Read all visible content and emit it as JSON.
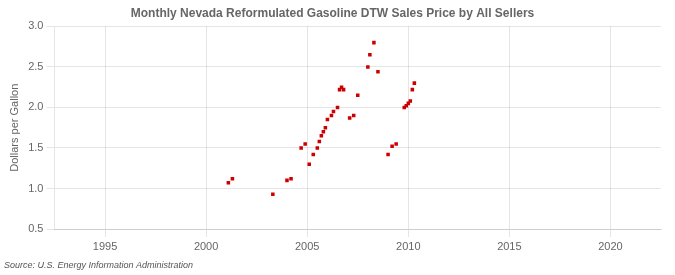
{
  "chart_data": {
    "type": "scatter",
    "title": "Monthly Nevada Reformulated Gasoline DTW Sales Price by All Sellers",
    "ylabel": "Dollars per Gallon",
    "annotation": "Source: U.S. Energy Information Administration",
    "x": [
      2001.1,
      2001.3,
      2003.3,
      2004.0,
      2004.2,
      2004.7,
      2004.9,
      2005.1,
      2005.3,
      2005.5,
      2005.6,
      2005.7,
      2005.8,
      2005.9,
      2006.0,
      2006.2,
      2006.3,
      2006.5,
      2006.6,
      2006.7,
      2006.8,
      2007.1,
      2007.3,
      2007.5,
      2008.0,
      2008.1,
      2008.3,
      2008.5,
      2009.0,
      2009.2,
      2009.4,
      2009.8,
      2009.9,
      2010.0,
      2010.1,
      2010.2,
      2010.3
    ],
    "values": [
      1.07,
      1.12,
      0.93,
      1.1,
      1.12,
      1.5,
      1.55,
      1.3,
      1.42,
      1.5,
      1.58,
      1.65,
      1.7,
      1.75,
      1.85,
      1.9,
      1.95,
      2.0,
      2.22,
      2.25,
      2.22,
      1.87,
      1.9,
      2.15,
      2.5,
      2.65,
      2.8,
      2.44,
      1.42,
      1.52,
      1.55,
      2.0,
      2.02,
      2.05,
      2.08,
      2.22,
      2.3
    ],
    "color": "#cc0000",
    "marker": "square",
    "xlim": [
      1992.5,
      2022.5
    ],
    "ylim": [
      0.5,
      3.0
    ],
    "xticks": [
      1995,
      2000,
      2005,
      2010,
      2015,
      2020
    ],
    "yticks": [
      0.5,
      {
        "value": 1.0,
        "label": "1.0"
      },
      1.5,
      {
        "value": 2.0,
        "label": "2.0"
      },
      2.5,
      {
        "value": 3.0,
        "label": "3.0"
      }
    ],
    "grid": true
  }
}
